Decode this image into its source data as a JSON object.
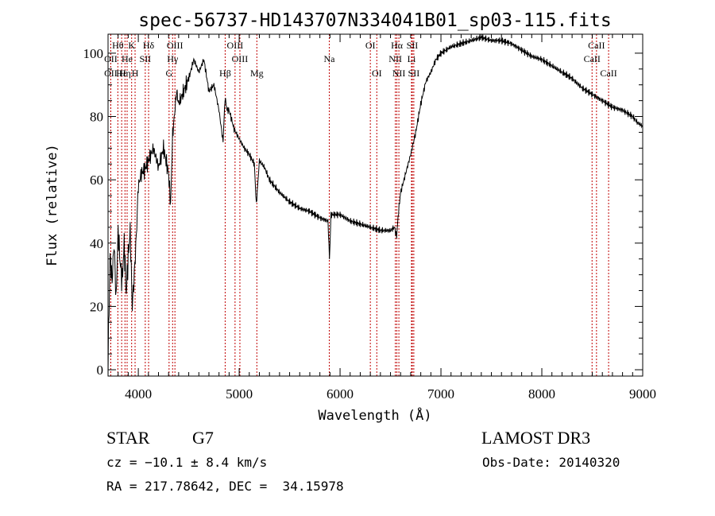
{
  "chart_data": {
    "type": "line",
    "title": "spec-56737-HD143707N334041B01_sp03-115.fits",
    "xlabel": "Wavelength (Å)",
    "ylabel": "Flux (relative)",
    "xlim": [
      3700,
      9000
    ],
    "ylim": [
      -2,
      106
    ],
    "x_ticks": [
      4000,
      5000,
      6000,
      7000,
      8000,
      9000
    ],
    "y_ticks": [
      0,
      20,
      40,
      60,
      80,
      100
    ],
    "grid": false,
    "line_color": "#000000",
    "marker_color": "#c00000",
    "series": [
      {
        "x": [
          3700,
          3720,
          3740,
          3760,
          3780,
          3800,
          3820,
          3840,
          3860,
          3880,
          3900,
          3920,
          3940,
          3960,
          3980,
          4000,
          4030,
          4060,
          4100,
          4150,
          4200,
          4250,
          4300,
          4320,
          4340,
          4380,
          4400,
          4450,
          4500,
          4550,
          4600,
          4650,
          4700,
          4750,
          4800,
          4840,
          4860,
          4880,
          4900,
          4950,
          5000,
          5050,
          5100,
          5150,
          5170,
          5200,
          5250,
          5300,
          5400,
          5500,
          5600,
          5700,
          5800,
          5880,
          5895,
          5910,
          6000,
          6100,
          6200,
          6300,
          6400,
          6450,
          6500,
          6540,
          6560,
          6580,
          6600,
          6650,
          6700,
          6750,
          6800,
          6850,
          6900,
          6950,
          7000,
          7100,
          7200,
          7300,
          7400,
          7500,
          7600,
          7700,
          7800,
          7900,
          8000,
          8100,
          8200,
          8300,
          8400,
          8500,
          8600,
          8700,
          8800,
          8900,
          8950,
          9000
        ],
        "y": [
          2,
          36,
          28,
          40,
          22,
          44,
          34,
          28,
          40,
          24,
          36,
          44,
          20,
          30,
          42,
          58,
          62,
          63,
          66,
          70,
          64,
          70,
          62,
          52,
          74,
          88,
          84,
          88,
          92,
          98,
          94,
          98,
          88,
          90,
          82,
          72,
          86,
          82,
          82,
          76,
          73,
          70,
          68,
          65,
          52,
          66,
          64,
          60,
          56,
          53,
          51,
          50,
          48,
          47,
          35,
          49,
          49,
          47,
          46,
          45,
          44,
          44,
          44,
          45,
          42,
          50,
          56,
          62,
          68,
          75,
          84,
          91,
          94,
          98,
          100,
          102,
          103,
          104,
          105,
          104,
          104,
          103,
          101,
          99,
          98,
          96,
          94,
          92,
          89,
          87,
          85,
          83,
          82,
          80,
          78,
          77
        ]
      }
    ],
    "spectral_lines": [
      {
        "label": "Hθ",
        "x": 3797,
        "row": 0
      },
      {
        "label": "K",
        "x": 3934,
        "row": 0
      },
      {
        "label": "Hδ",
        "x": 4102,
        "row": 0
      },
      {
        "label": "OIII",
        "x": 4363,
        "row": 0
      },
      {
        "label": "OIII",
        "x": 4959,
        "row": 0
      },
      {
        "label": "OI",
        "x": 6300,
        "row": 0
      },
      {
        "label": "Hα",
        "x": 6563,
        "row": 0
      },
      {
        "label": "SII",
        "x": 6716,
        "row": 0
      },
      {
        "label": "CaII",
        "x": 8542,
        "row": 0
      },
      {
        "label": "OII",
        "x": 3727,
        "row": 1
      },
      {
        "label": "He",
        "x": 3889,
        "row": 1
      },
      {
        "label": "SII",
        "x": 4069,
        "row": 1
      },
      {
        "label": "Hγ",
        "x": 4340,
        "row": 1
      },
      {
        "label": "OIII",
        "x": 5007,
        "row": 1
      },
      {
        "label": "Na",
        "x": 5893,
        "row": 1
      },
      {
        "label": "NII",
        "x": 6548,
        "row": 1
      },
      {
        "label": "Li",
        "x": 6708,
        "row": 1
      },
      {
        "label": "CaII",
        "x": 8498,
        "row": 1
      },
      {
        "label": "OII",
        "x": 3727,
        "row": 2
      },
      {
        "label": "Hε",
        "x": 3835,
        "row": 2
      },
      {
        "label": "Hη",
        "x": 3868,
        "row": 2
      },
      {
        "label": "H",
        "x": 3968,
        "row": 2
      },
      {
        "label": "G",
        "x": 4305,
        "row": 2
      },
      {
        "label": "Hβ",
        "x": 4861,
        "row": 2
      },
      {
        "label": "Mg",
        "x": 5175,
        "row": 2
      },
      {
        "label": "OI",
        "x": 6364,
        "row": 2
      },
      {
        "label": "NII",
        "x": 6583,
        "row": 2
      },
      {
        "label": "SII",
        "x": 6731,
        "row": 2
      },
      {
        "label": "CaII",
        "x": 8662,
        "row": 2
      }
    ]
  },
  "info": {
    "object_class": "STAR",
    "subclass": "G7",
    "survey": "LAMOST DR3",
    "cz": "cz = −10.1 ± 8.4 km/s",
    "obs_date": "Obs-Date: 20140320",
    "coords": "RA = 217.78642, DEC =  34.15978"
  }
}
